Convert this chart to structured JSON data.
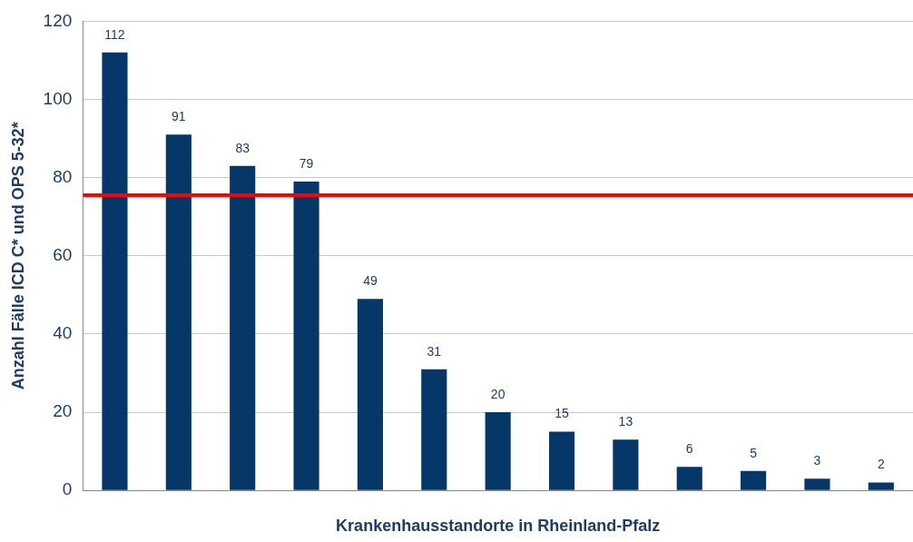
{
  "chart_data": {
    "type": "bar",
    "xlabel": "Krankenhausstandorte in Rheinland-Pfalz",
    "ylabel": "Anzahl Fälle ICD C* und OPS 5-32*",
    "categories": [
      null,
      null,
      null,
      null,
      null,
      null,
      null,
      null,
      null,
      null,
      null,
      null,
      null
    ],
    "values": [
      112,
      91,
      83,
      79,
      49,
      31,
      20,
      15,
      13,
      6,
      5,
      3,
      2
    ],
    "color": "#053769",
    "ylim": [
      0,
      120
    ],
    "yticks": [
      0,
      20,
      40,
      60,
      80,
      100,
      120
    ],
    "grid": "y",
    "data_labels": true,
    "legend": false,
    "ref_lines": [
      {
        "axis": "y",
        "value": 75.5,
        "color": "#ff0000"
      }
    ]
  }
}
